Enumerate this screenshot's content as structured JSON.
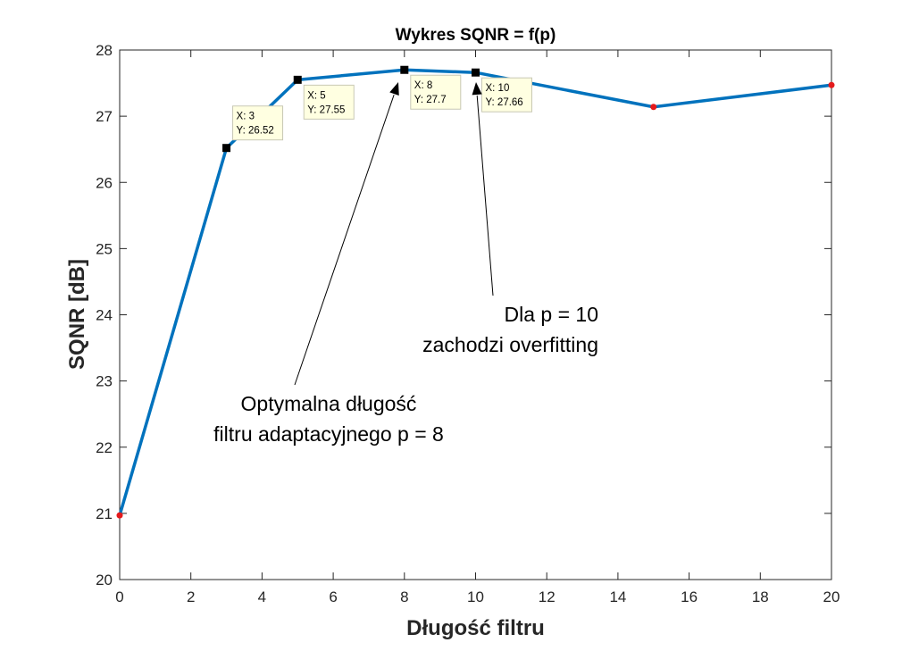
{
  "chart_data": {
    "type": "line",
    "title": "Wykres SQNR = f(p)",
    "xlabel": "Długość filtru",
    "ylabel": "SQNR [dB]",
    "xlim": [
      0,
      20
    ],
    "ylim": [
      20,
      28
    ],
    "xticks": [
      "0",
      "2",
      "4",
      "6",
      "8",
      "10",
      "12",
      "14",
      "16",
      "18",
      "20"
    ],
    "yticks": [
      "20",
      "21",
      "22",
      "23",
      "24",
      "25",
      "26",
      "27",
      "28"
    ],
    "grid": false,
    "line_color": "#0072bd",
    "series": [
      {
        "x": [
          0,
          3,
          5,
          8,
          10,
          15,
          20
        ],
        "y": [
          20.97,
          26.52,
          27.55,
          27.7,
          27.66,
          27.14,
          27.47
        ]
      }
    ],
    "red_markers_x": [
      0,
      15,
      20
    ],
    "marker_color_red": "#e41a1c",
    "marker_color_black": "#000000",
    "datatips": [
      {
        "x": 3,
        "y": 26.52,
        "x_text": "X: 3",
        "y_text": "Y: 26.52"
      },
      {
        "x": 5,
        "y": 27.55,
        "x_text": "X: 5",
        "y_text": "Y: 27.55"
      },
      {
        "x": 8,
        "y": 27.7,
        "x_text": "X: 8",
        "y_text": "Y: 27.7"
      },
      {
        "x": 10,
        "y": 27.66,
        "x_text": "X: 10",
        "y_text": "Y: 27.66"
      }
    ],
    "annotations": [
      {
        "lines": [
          "Optymalna długość",
          "filtru adaptacyjnego p = 8"
        ],
        "points_to_x": 8
      },
      {
        "lines": [
          "Dla p = 10",
          "zachodzi overfitting"
        ],
        "points_to_x": 10
      }
    ]
  }
}
